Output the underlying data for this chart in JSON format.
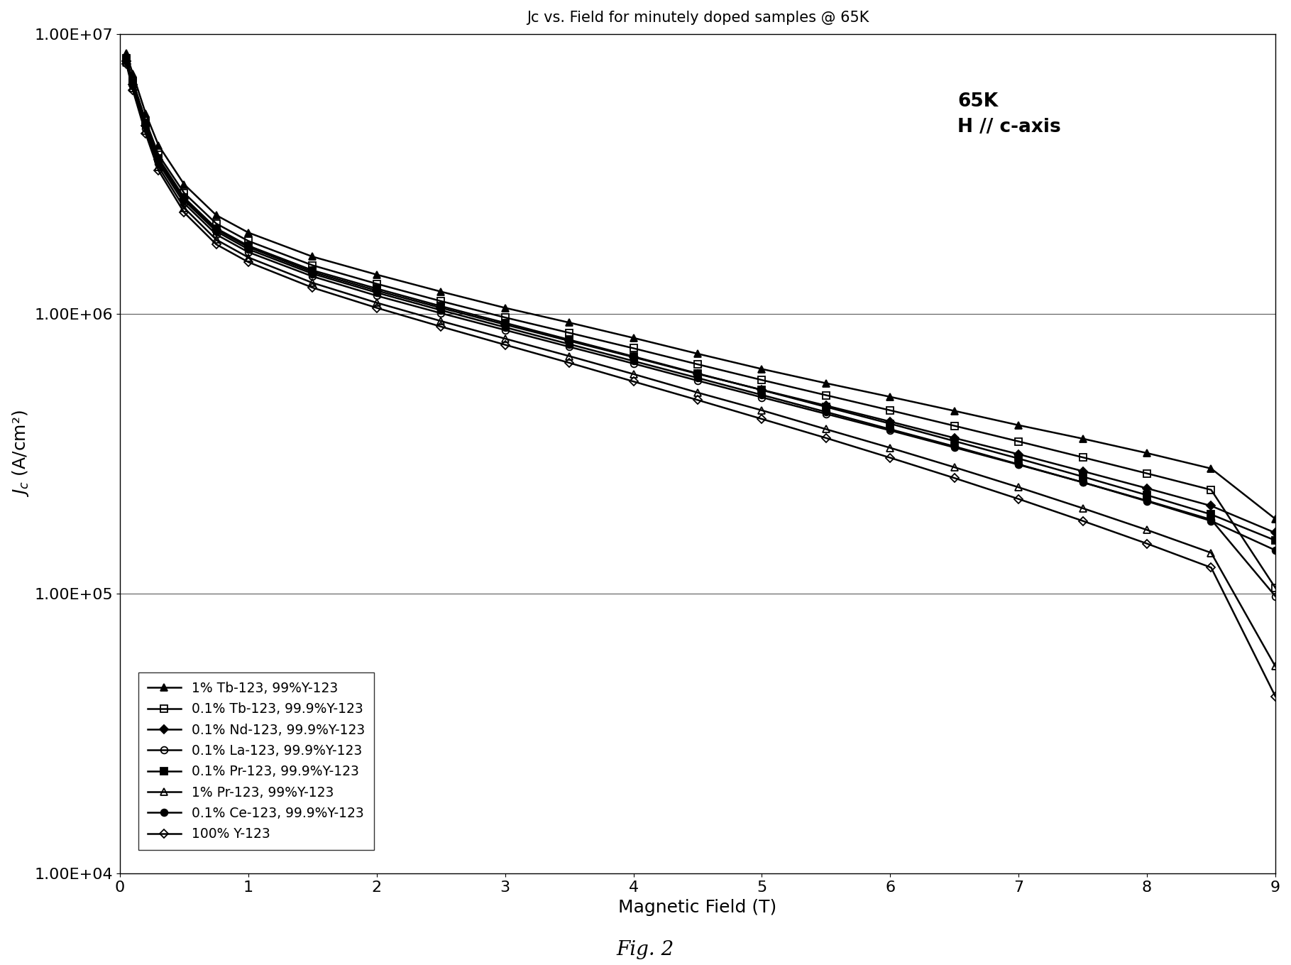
{
  "title": "Jc vs. Field for minutely doped samples @ 65K",
  "xlabel": "Magnetic Field (T)",
  "annotation": "65K\nH // c-axis",
  "fig_caption": "Fig. 2",
  "xlim": [
    0,
    9
  ],
  "ylim": [
    10000.0,
    10000000.0
  ],
  "xticks": [
    0,
    1,
    2,
    3,
    4,
    5,
    6,
    7,
    8,
    9
  ],
  "series": [
    {
      "label": "1% Tb-123, 99%Y-123",
      "marker": "^",
      "markersize": 7,
      "color": "#000000",
      "linewidth": 1.8,
      "fillstyle": "full",
      "x": [
        0.05,
        0.1,
        0.2,
        0.3,
        0.5,
        0.75,
        1.0,
        1.5,
        2.0,
        2.5,
        3.0,
        3.5,
        4.0,
        4.5,
        5.0,
        5.5,
        6.0,
        6.5,
        7.0,
        7.5,
        8.0,
        8.5,
        9.0
      ],
      "y": [
        8500000,
        7200000,
        5200000,
        4000000,
        2900000,
        2250000,
        1950000,
        1600000,
        1380000,
        1200000,
        1050000,
        930000,
        820000,
        720000,
        635000,
        565000,
        505000,
        450000,
        400000,
        358000,
        318000,
        280000,
        185000
      ]
    },
    {
      "label": "0.1% Tb-123, 99.9%Y-123",
      "marker": "s",
      "markersize": 7,
      "color": "#000000",
      "linewidth": 1.8,
      "fillstyle": "none",
      "x": [
        0.05,
        0.1,
        0.2,
        0.3,
        0.5,
        0.75,
        1.0,
        1.5,
        2.0,
        2.5,
        3.0,
        3.5,
        4.0,
        4.5,
        5.0,
        5.5,
        6.0,
        6.5,
        7.0,
        7.5,
        8.0,
        8.5,
        9.0
      ],
      "y": [
        8200000,
        6800000,
        4900000,
        3700000,
        2700000,
        2100000,
        1820000,
        1490000,
        1280000,
        1110000,
        970000,
        855000,
        753000,
        660000,
        580000,
        512000,
        452000,
        398000,
        350000,
        307000,
        269000,
        235000,
        105000
      ]
    },
    {
      "label": "0.1% Nd-123, 99.9%Y-123",
      "marker": "D",
      "markersize": 6,
      "color": "#000000",
      "linewidth": 1.8,
      "fillstyle": "full",
      "x": [
        0.05,
        0.1,
        0.2,
        0.3,
        0.5,
        0.75,
        1.0,
        1.5,
        2.0,
        2.5,
        3.0,
        3.5,
        4.0,
        4.5,
        5.0,
        5.5,
        6.0,
        6.5,
        7.0,
        7.5,
        8.0,
        8.5,
        9.0
      ],
      "y": [
        8000000,
        6600000,
        4700000,
        3550000,
        2580000,
        2000000,
        1730000,
        1410000,
        1210000,
        1050000,
        915000,
        800000,
        700000,
        610000,
        535000,
        470000,
        412000,
        360000,
        315000,
        274000,
        238000,
        206000,
        165000
      ]
    },
    {
      "label": "0.1% La-123, 99.9%Y-123",
      "marker": "o",
      "markersize": 7,
      "color": "#000000",
      "linewidth": 1.8,
      "fillstyle": "none",
      "x": [
        0.05,
        0.1,
        0.2,
        0.3,
        0.5,
        0.75,
        1.0,
        1.5,
        2.0,
        2.5,
        3.0,
        3.5,
        4.0,
        4.5,
        5.0,
        5.5,
        6.0,
        6.5,
        7.0,
        7.5,
        8.0,
        8.5,
        9.0
      ],
      "y": [
        8000000,
        6500000,
        4600000,
        3450000,
        2480000,
        1920000,
        1660000,
        1360000,
        1160000,
        1005000,
        875000,
        762000,
        664000,
        577000,
        503000,
        439000,
        383000,
        333000,
        289000,
        250000,
        215000,
        184000,
        98000
      ]
    },
    {
      "label": "0.1% Pr-123, 99.9%Y-123",
      "marker": "s",
      "markersize": 7,
      "color": "#000000",
      "linewidth": 1.8,
      "fillstyle": "full",
      "x": [
        0.05,
        0.1,
        0.2,
        0.3,
        0.5,
        0.75,
        1.0,
        1.5,
        2.0,
        2.5,
        3.0,
        3.5,
        4.0,
        4.5,
        5.0,
        5.5,
        6.0,
        6.5,
        7.0,
        7.5,
        8.0,
        8.5,
        9.0
      ],
      "y": [
        8100000,
        6700000,
        4800000,
        3600000,
        2600000,
        2020000,
        1750000,
        1430000,
        1230000,
        1065000,
        928000,
        808000,
        704000,
        612000,
        534000,
        465000,
        405000,
        351000,
        304000,
        262000,
        225000,
        192000,
        155000
      ]
    },
    {
      "label": "1% Pr-123, 99%Y-123",
      "marker": "^",
      "markersize": 7,
      "color": "#000000",
      "linewidth": 1.8,
      "fillstyle": "none",
      "x": [
        0.05,
        0.1,
        0.2,
        0.3,
        0.5,
        0.75,
        1.0,
        1.5,
        2.0,
        2.5,
        3.0,
        3.5,
        4.0,
        4.5,
        5.0,
        5.5,
        6.0,
        6.5,
        7.0,
        7.5,
        8.0,
        8.5,
        9.0
      ],
      "y": [
        7900000,
        6400000,
        4500000,
        3350000,
        2390000,
        1840000,
        1590000,
        1290000,
        1095000,
        942000,
        815000,
        706000,
        609000,
        523000,
        452000,
        387000,
        332000,
        283000,
        240000,
        202000,
        169000,
        140000,
        55000
      ]
    },
    {
      "label": "0.1% Ce-123, 99.9%Y-123",
      "marker": "o",
      "markersize": 7,
      "color": "#000000",
      "linewidth": 1.8,
      "fillstyle": "full",
      "x": [
        0.05,
        0.1,
        0.2,
        0.3,
        0.5,
        0.75,
        1.0,
        1.5,
        2.0,
        2.5,
        3.0,
        3.5,
        4.0,
        4.5,
        5.0,
        5.5,
        6.0,
        6.5,
        7.0,
        7.5,
        8.0,
        8.5,
        9.0
      ],
      "y": [
        8000000,
        6600000,
        4700000,
        3520000,
        2540000,
        1970000,
        1700000,
        1390000,
        1190000,
        1030000,
        895000,
        779000,
        678000,
        590000,
        513000,
        446000,
        387000,
        336000,
        290000,
        250000,
        214000,
        182000,
        143000
      ]
    },
    {
      "label": "100% Y-123",
      "marker": "D",
      "markersize": 6,
      "color": "#000000",
      "linewidth": 1.8,
      "fillstyle": "none",
      "x": [
        0.05,
        0.1,
        0.2,
        0.3,
        0.5,
        0.75,
        1.0,
        1.5,
        2.0,
        2.5,
        3.0,
        3.5,
        4.0,
        4.5,
        5.0,
        5.5,
        6.0,
        6.5,
        7.0,
        7.5,
        8.0,
        8.5,
        9.0
      ],
      "y": [
        7800000,
        6300000,
        4400000,
        3250000,
        2300000,
        1770000,
        1530000,
        1240000,
        1050000,
        900000,
        775000,
        668000,
        573000,
        492000,
        421000,
        360000,
        306000,
        259000,
        218000,
        182000,
        151000,
        124000,
        43000
      ]
    }
  ]
}
